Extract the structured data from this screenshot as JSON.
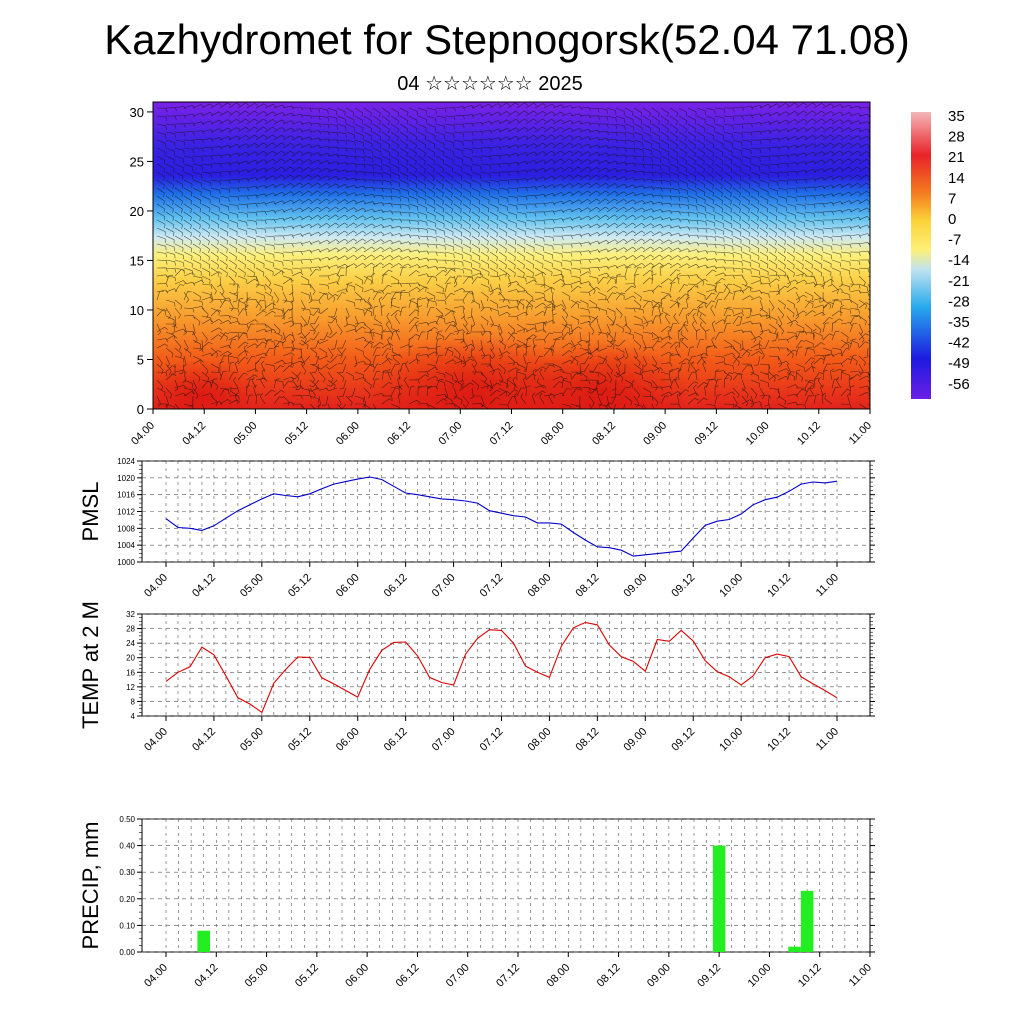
{
  "title": "Kazhydromet for Stepnogorsk(52.04 71.08)",
  "subtitle": "04 ☆☆☆☆☆☆ 2025",
  "colorbar": {
    "labels": [
      "35",
      "28",
      "21",
      "14",
      "7",
      "0",
      "-7",
      "-14",
      "-21",
      "-28",
      "-35",
      "-42",
      "-49",
      "-56"
    ],
    "colors": [
      "#f4b6b8",
      "#e8232a",
      "#f47a1f",
      "#fbd43a",
      "#bfe2f0",
      "#27a9ec",
      "#1d1ae0",
      "#6b1fe6"
    ]
  },
  "chart_data": [
    {
      "type": "heatmap",
      "description_vars": "Air temperature (°C) vertical cross-section with wind barbs",
      "x_ticks": [
        "04.00",
        "04.12",
        "05.00",
        "05.12",
        "06.00",
        "06.12",
        "07.00",
        "07.12",
        "08.00",
        "08.12",
        "09.00",
        "09.12",
        "10.00",
        "10.12",
        "11.00"
      ],
      "y_ticks": [
        "0",
        "5",
        "10",
        "15",
        "20",
        "25",
        "30"
      ],
      "ylim": [
        0,
        31
      ],
      "value_range": [
        -56,
        35
      ]
    },
    {
      "type": "line",
      "ylabel": "PMSL",
      "ylim": [
        1000,
        1024
      ],
      "y_ticks": [
        "1000",
        "1004",
        "1008",
        "1012",
        "1016",
        "1020",
        "1024"
      ],
      "x_ticks": [
        "04.00",
        "04.12",
        "05.00",
        "05.12",
        "06.00",
        "06.12",
        "07.00",
        "07.12",
        "08.00",
        "08.12",
        "09.00",
        "09.12",
        "10.00",
        "10.12",
        "11.00"
      ],
      "color": "#0000cc",
      "values": [
        1010.3,
        1008.2,
        1008.0,
        1007.5,
        1008.6,
        1010.4,
        1012.2,
        1013.6,
        1015.0,
        1016.2,
        1015.8,
        1015.5,
        1016.2,
        1017.4,
        1018.5,
        1019.1,
        1019.7,
        1020.2,
        1019.6,
        1018.0,
        1016.4,
        1016.0,
        1015.5,
        1015.0,
        1014.8,
        1014.5,
        1014.0,
        1012.2,
        1011.6,
        1011.0,
        1010.7,
        1009.3,
        1009.3,
        1009.0,
        1007.0,
        1005.2,
        1003.6,
        1003.4,
        1002.8,
        1001.4,
        1001.7,
        1002.0,
        1002.3,
        1002.6,
        1005.7,
        1008.7,
        1009.7,
        1010.1,
        1011.4,
        1013.6,
        1014.8,
        1015.4,
        1016.8,
        1018.5,
        1019.0,
        1018.8,
        1019.2
      ]
    },
    {
      "type": "line",
      "ylabel": "TEMP at 2 M",
      "ylim": [
        4,
        32
      ],
      "y_ticks": [
        "4",
        "8",
        "12",
        "16",
        "20",
        "24",
        "28",
        "32"
      ],
      "x_ticks": [
        "04.00",
        "04.12",
        "05.00",
        "05.12",
        "06.00",
        "06.12",
        "07.00",
        "07.12",
        "08.00",
        "08.12",
        "09.00",
        "09.12",
        "10.00",
        "10.12",
        "11.00"
      ],
      "color": "#dd0000",
      "values": [
        13.5,
        16.0,
        17.5,
        22.9,
        20.8,
        15.0,
        9.0,
        7.3,
        5.0,
        13.0,
        16.8,
        20.2,
        20.1,
        14.5,
        12.8,
        11.0,
        9.2,
        16.8,
        22.0,
        24.2,
        24.3,
        20.5,
        14.6,
        13.2,
        12.5,
        21.0,
        25.3,
        27.7,
        27.5,
        24.0,
        17.7,
        16.0,
        14.6,
        23.2,
        28.2,
        29.7,
        29.0,
        23.5,
        20.3,
        19.0,
        16.3,
        25.0,
        24.5,
        27.5,
        24.6,
        19.2,
        16.2,
        14.8,
        12.5,
        15.0,
        20.0,
        21.0,
        20.3,
        14.8,
        12.8,
        11.0,
        9.0
      ]
    },
    {
      "type": "bar",
      "ylabel": "PRECIP, mm",
      "ylim": [
        0,
        0.5
      ],
      "y_ticks": [
        "0.00",
        "0.10",
        "0.20",
        "0.30",
        "0.40",
        "0.50"
      ],
      "x_ticks": [
        "04.00",
        "04.12",
        "05.00",
        "05.12",
        "06.00",
        "06.12",
        "07.00",
        "07.12",
        "08.00",
        "08.12",
        "09.00",
        "09.12",
        "10.00",
        "10.12",
        "11.00"
      ],
      "color": "#22ee22",
      "bars": [
        {
          "step": 3,
          "value": 0.08
        },
        {
          "step": 44,
          "value": 0.4
        },
        {
          "step": 50,
          "value": 0.02
        },
        {
          "step": 51,
          "value": 0.23
        }
      ]
    }
  ]
}
